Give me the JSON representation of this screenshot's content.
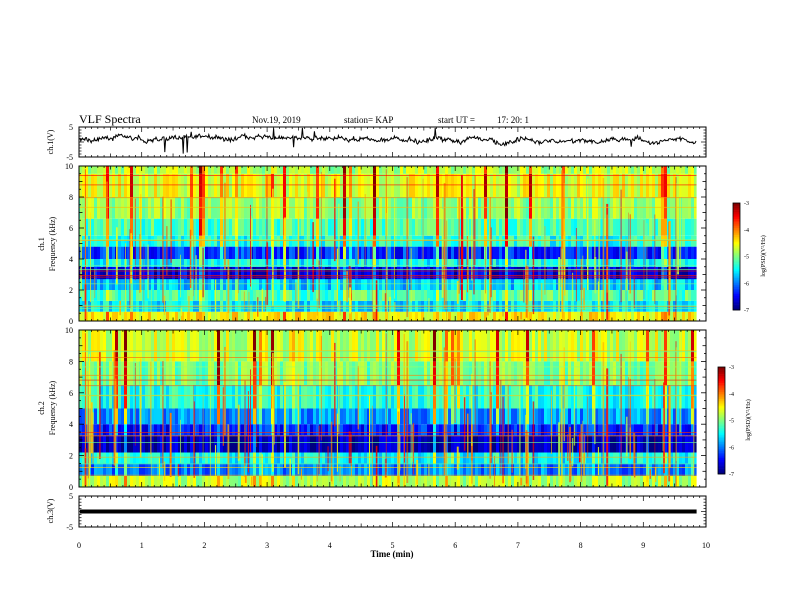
{
  "header": {
    "title": "VLF Spectra",
    "date": "Nov.19, 2019",
    "station": "station= KAP",
    "start_label": "start  UT  =",
    "start_time": "17: 20: 1"
  },
  "chart_data": [
    {
      "type": "line",
      "name": "ch1-waveform",
      "ylabel": "ch.1(V)",
      "xlim": [
        0,
        10
      ],
      "ylim": [
        -5,
        5
      ],
      "ytick_labels": [
        "5",
        "-5"
      ],
      "data_end_min": 9.85,
      "baseline_v": 0.9,
      "fluctuation_v": 1.4
    },
    {
      "type": "heatmap",
      "name": "ch1-spectrogram",
      "ylabel_line1": "ch.1",
      "ylabel_line2": "Frequency  (kHz)",
      "xlim": [
        0,
        10
      ],
      "ylim": [
        0,
        10
      ],
      "ytick_labels": [
        "0",
        "2",
        "4",
        "6",
        "8",
        "10"
      ],
      "colorbar": {
        "label": "log(PSD)(V²/Hz)",
        "range": [
          -7,
          -3
        ],
        "tick_labels": [
          "-3",
          "-4",
          "-5",
          "-6",
          "-7"
        ]
      },
      "bands": [
        {
          "from": 0.0,
          "to": 0.6,
          "level": -4.5
        },
        {
          "from": 0.6,
          "to": 1.3,
          "level": -5.6
        },
        {
          "from": 1.3,
          "to": 2.0,
          "level": -5.2
        },
        {
          "from": 2.0,
          "to": 2.7,
          "level": -5.7
        },
        {
          "from": 2.7,
          "to": 3.5,
          "level": -6.6
        },
        {
          "from": 3.5,
          "to": 4.0,
          "level": -5.5
        },
        {
          "from": 4.0,
          "to": 4.8,
          "level": -6.3
        },
        {
          "from": 4.8,
          "to": 5.5,
          "level": -5.4
        },
        {
          "from": 5.5,
          "to": 6.6,
          "level": -5.2
        },
        {
          "from": 6.6,
          "to": 8.0,
          "level": -4.9
        },
        {
          "from": 8.0,
          "to": 9.5,
          "level": -4.6
        },
        {
          "from": 9.5,
          "to": 10.0,
          "level": -4.8
        }
      ]
    },
    {
      "type": "heatmap",
      "name": "ch2-spectrogram",
      "ylabel_line1": "ch.2",
      "ylabel_line2": "Frequency  (kHz)",
      "xlim": [
        0,
        10
      ],
      "ylim": [
        0,
        10
      ],
      "ytick_labels": [
        "0",
        "2",
        "4",
        "6",
        "8",
        "10"
      ],
      "colorbar": {
        "label": "log(PSD)(V²/Hz)",
        "range": [
          -7,
          -3
        ],
        "tick_labels": [
          "-3",
          "-4",
          "-5",
          "-6",
          "-7"
        ]
      },
      "bands": [
        {
          "from": 0.0,
          "to": 0.7,
          "level": -4.8
        },
        {
          "from": 0.7,
          "to": 1.5,
          "level": -6.0
        },
        {
          "from": 1.5,
          "to": 2.2,
          "level": -5.5
        },
        {
          "from": 2.2,
          "to": 3.3,
          "level": -6.8
        },
        {
          "from": 3.3,
          "to": 4.0,
          "level": -6.4
        },
        {
          "from": 4.0,
          "to": 5.0,
          "level": -5.9
        },
        {
          "from": 5.0,
          "to": 6.5,
          "level": -5.4
        },
        {
          "from": 6.5,
          "to": 8.0,
          "level": -5.0
        },
        {
          "from": 8.0,
          "to": 10.0,
          "level": -4.7
        }
      ]
    },
    {
      "type": "line",
      "name": "ch3-waveform",
      "ylabel": "ch.3(V)",
      "xlim": [
        0,
        10
      ],
      "ylim": [
        -5,
        5
      ],
      "ytick_labels": [
        "5",
        "-5"
      ],
      "data_end_min": 9.85,
      "level_v": 0.0
    }
  ],
  "xaxis": {
    "label": "Time  (min)",
    "tick_labels": [
      "0",
      "1",
      "2",
      "3",
      "4",
      "5",
      "6",
      "7",
      "8",
      "9",
      "10"
    ]
  }
}
